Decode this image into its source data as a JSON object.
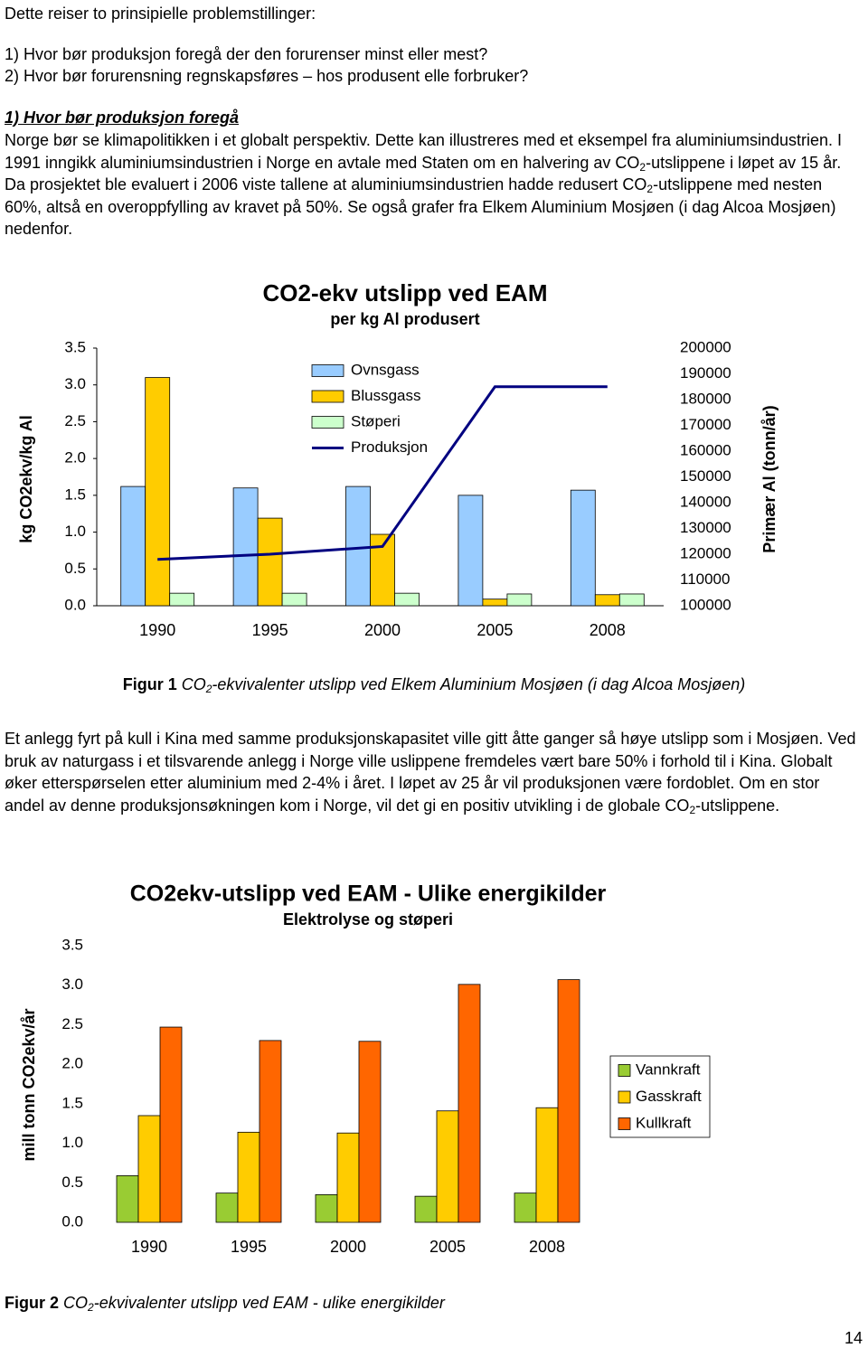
{
  "intro": "Dette reiser to prinsipielle problemstillinger:",
  "questions": [
    "1) Hvor bør produksjon foregå der den forurenser minst eller mest?",
    "2) Hvor bør forurensning regnskapsføres – hos produsent elle forbruker?"
  ],
  "heading": "1) Hvor bør produksjon foregå",
  "paragraphs": [
    [
      "Norge bør se klimapolitikken i et globalt perspektiv. Dette kan illustreres med et eksempel fra aluminiumsindustrien. I 1991 inngikk aluminiumsindustrien i Norge en avtale med Staten om en halvering av CO",
      {
        "sub": "2"
      },
      "-utslippene i løpet av 15 år. Da prosjektet ble evaluert i 2006 viste tallene at aluminiumsindustrien hadde redusert CO",
      {
        "sub": "2"
      },
      "-utslippene med nesten 60%, altså en overoppfylling av kravet på 50%. Se også grafer fra Elkem Aluminium Mosjøen (i dag Alcoa Mosjøen) nedenfor."
    ],
    [
      "Et anlegg fyrt på kull i Kina med samme produksjonskapasitet ville gitt åtte ganger så høye utslipp som i Mosjøen. Ved bruk av naturgass i et tilsvarende anlegg i Norge ville uslippene fremdeles vært bare 50% i forhold til i Kina. Globalt øker etterspørselen etter aluminium med 2-4% i året. I løpet av 25 år vil produksjonen være fordoblet. Om en stor andel av denne produksjonsøkningen kom i Norge, vil det gi en positiv utvikling i de globale CO",
      {
        "sub": "2"
      },
      "-utslippene."
    ]
  ],
  "figure_captions": [
    {
      "label": "Figur 1",
      "text": [
        "CO",
        {
          "sub": "2"
        },
        "-ekvivalenter utslipp ved Elkem Aluminium Mosjøen (i dag Alcoa Mosjøen)"
      ]
    },
    {
      "label": "Figur 2",
      "text": [
        "CO",
        {
          "sub": "2"
        },
        "-ekvivalenter utslipp ved EAM - ulike energikilder"
      ]
    }
  ],
  "chart_data": [
    {
      "type": "bar",
      "title": "CO2-ekv utslipp ved EAM",
      "subtitle": "per kg Al produsert",
      "y_label": "kg CO2ekv/kg Al",
      "y2_label": "Primær Al (tonn/år)",
      "categories": [
        "1990",
        "1995",
        "2000",
        "2005",
        "2008"
      ],
      "series": [
        {
          "name": "Ovnsgass",
          "color": "#99ccff",
          "values": [
            1.62,
            1.6,
            1.62,
            1.5,
            1.57
          ]
        },
        {
          "name": "Blussgass",
          "color": "#ffcc00",
          "values": [
            3.1,
            1.19,
            0.97,
            0.09,
            0.15
          ]
        },
        {
          "name": "Støperi",
          "color": "#ccffcc",
          "values": [
            0.17,
            0.17,
            0.17,
            0.16,
            0.16
          ]
        },
        {
          "name": "Produksjon",
          "color": "#000080",
          "type": "line",
          "axis": "y2",
          "values": [
            118000,
            120000,
            123000,
            185000,
            185000
          ]
        }
      ],
      "ylim": [
        0,
        3.5
      ],
      "yticks": [
        {
          "value": 0,
          "label": "0.0"
        },
        {
          "value": 0.5,
          "label": "0.5"
        },
        {
          "value": 1,
          "label": "1.0"
        },
        {
          "value": 1.5,
          "label": "1.5"
        },
        {
          "value": 2,
          "label": "2.0"
        },
        {
          "value": 2.5,
          "label": "2.5"
        },
        {
          "value": 3,
          "label": "3.0"
        },
        {
          "value": 3.5,
          "label": "3.5"
        }
      ],
      "y2lim": [
        100000,
        200000
      ],
      "y2ticks": [
        100000,
        110000,
        120000,
        130000,
        140000,
        150000,
        160000,
        170000,
        180000,
        190000,
        200000
      ],
      "axes": true,
      "legend": "top",
      "legend_border": false
    },
    {
      "type": "bar",
      "title": "CO2ekv-utslipp ved EAM - Ulike energikilder",
      "subtitle": "Elektrolyse og støperi",
      "y_label": "mill tonn CO2ekv/år",
      "categories": [
        "1990",
        "1995",
        "2000",
        "2005",
        "2008"
      ],
      "series": [
        {
          "name": "Vannkraft",
          "color": "#99cc33",
          "values": [
            0.59,
            0.37,
            0.35,
            0.33,
            0.37
          ]
        },
        {
          "name": "Gasskraft",
          "color": "#ffcc00",
          "values": [
            1.35,
            1.14,
            1.13,
            1.41,
            1.45
          ]
        },
        {
          "name": "Kullkraft",
          "color": "#ff6600",
          "values": [
            2.47,
            2.3,
            2.29,
            3.01,
            3.07
          ]
        }
      ],
      "ylim": [
        0,
        3.5
      ],
      "yticks": [
        {
          "value": 0,
          "label": "0.0"
        },
        {
          "value": 0.5,
          "label": "0.5"
        },
        {
          "value": 1,
          "label": "1.0"
        },
        {
          "value": 1.5,
          "label": "1.5"
        },
        {
          "value": 2,
          "label": "2.0"
        },
        {
          "value": 2.5,
          "label": "2.5"
        },
        {
          "value": 3,
          "label": "3.0"
        },
        {
          "value": 3.5,
          "label": "3.5"
        }
      ],
      "axes": false,
      "legend": "right",
      "legend_border": true
    }
  ],
  "page_number": "14"
}
